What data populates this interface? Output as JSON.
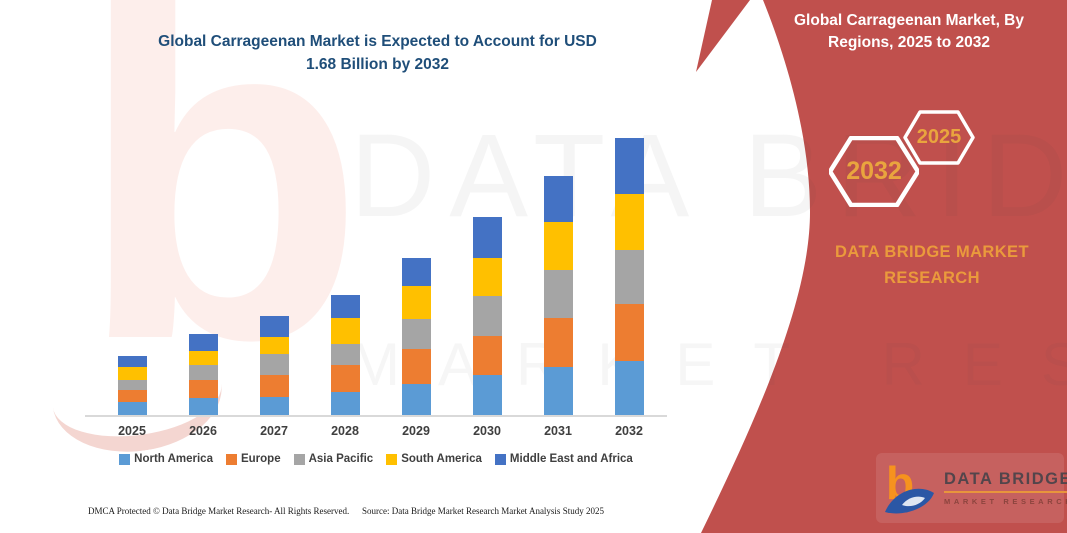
{
  "chart": {
    "title_line1": "Global Carrageenan Market is Expected to Account for USD",
    "title_line2": "1.68 Billion by 2032"
  },
  "chart_data": {
    "type": "bar",
    "stacked": true,
    "title": "Global Carrageenan Market is Expected to Account for USD 1.68 Billion by 2032",
    "unit": "USD Billion",
    "categories": [
      "2025",
      "2026",
      "2027",
      "2028",
      "2029",
      "2030",
      "2031",
      "2032"
    ],
    "series": [
      {
        "name": "North America",
        "color": "#5B9BD5",
        "values": [
          0.08,
          0.1,
          0.11,
          0.14,
          0.19,
          0.24,
          0.29,
          0.33
        ]
      },
      {
        "name": "Europe",
        "color": "#ED7D31",
        "values": [
          0.07,
          0.11,
          0.13,
          0.16,
          0.21,
          0.24,
          0.3,
          0.34
        ]
      },
      {
        "name": "Asia Pacific",
        "color": "#A5A5A5",
        "values": [
          0.06,
          0.09,
          0.13,
          0.13,
          0.18,
          0.24,
          0.29,
          0.33
        ]
      },
      {
        "name": "South America",
        "color": "#FFC000",
        "values": [
          0.08,
          0.09,
          0.1,
          0.16,
          0.2,
          0.23,
          0.29,
          0.34
        ]
      },
      {
        "name": "Middle East and Africa",
        "color": "#4472C4",
        "values": [
          0.07,
          0.1,
          0.13,
          0.14,
          0.17,
          0.25,
          0.28,
          0.34
        ]
      }
    ],
    "totals": [
      0.36,
      0.49,
      0.6,
      0.73,
      0.95,
      1.2,
      1.45,
      1.68
    ],
    "annotation": "2032 total stated on chart title as USD 1.68 Billion; per-segment values estimated from bar heights",
    "legend_position": "bottom",
    "gridlines": false,
    "ylim": [
      0,
      1.8
    ]
  },
  "side_panel": {
    "title_line1": "Global Carrageenan Market, By",
    "title_line2": "Regions, 2025 to 2032",
    "hexagons": [
      {
        "label": "2032"
      },
      {
        "label": "2025"
      }
    ],
    "brand_line1": "DATA BRIDGE MARKET",
    "brand_line2": "RESEARCH",
    "logo": {
      "name": "DATA BRIDGE",
      "sub": "MARKET RESEARCH",
      "mark_letter": "b"
    }
  },
  "watermark": {
    "row1": "DATA BRIDGE",
    "row2": "MARKET RESEARCH",
    "letter_b": "b"
  },
  "footer": {
    "left": "DMCA Protected © Data Bridge Market Research-  All Rights Reserved.",
    "source": "Source: Data Bridge Market Research  Market Analysis Study 2025"
  },
  "colors": {
    "panel_red": "#C0504D",
    "title_blue": "#1F4E79",
    "label_gray": "#3F3F3F",
    "brand_orange": "#EA9A3C",
    "hex_year_orange": "#E9A53E",
    "logo_orange": "#F6921E",
    "logo_blue": "#2B57A5",
    "axis_line": "#D9D9D9"
  }
}
